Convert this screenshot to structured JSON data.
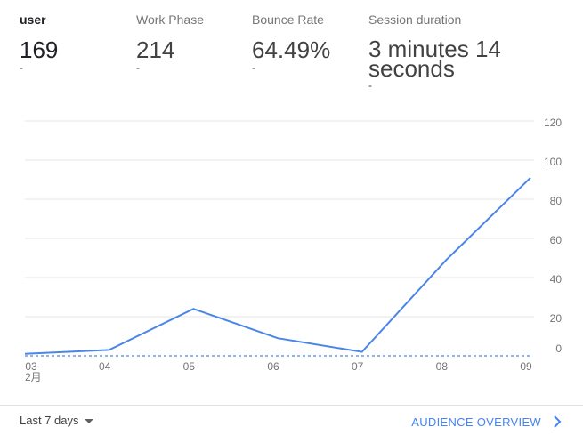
{
  "metrics": [
    {
      "label": "user",
      "value": "169",
      "change": "-"
    },
    {
      "label": "Work Phase",
      "value": "214",
      "change": "-"
    },
    {
      "label": "Bounce Rate",
      "value": "64.49%",
      "change": "-"
    },
    {
      "label": "Session duration",
      "value": "3 minutes 14 seconds",
      "change": "-"
    }
  ],
  "chart_data": {
    "type": "line",
    "categories": [
      "03",
      "04",
      "05",
      "06",
      "07",
      "08",
      "09"
    ],
    "month_label": "2月",
    "series": [
      {
        "values": [
          1,
          3,
          24,
          9,
          2,
          49,
          91
        ],
        "color": "#4a86e8"
      },
      {
        "values": [
          0,
          0,
          0,
          0,
          0,
          0,
          0
        ],
        "color": "#4a86e8",
        "style": "dashed"
      }
    ],
    "yticks": [
      0,
      20,
      40,
      60,
      80,
      100,
      120
    ],
    "ylim": [
      0,
      120
    ],
    "grid": true,
    "y_axis_side": "right"
  },
  "footer": {
    "date_range": "Last 7 days",
    "overview_link": "AUDIENCE OVERVIEW"
  },
  "colors": {
    "accent": "#4285f4",
    "line": "#4a86e8",
    "grid": "#e6e6e6"
  },
  "icons": {
    "caret": "caret-down-icon",
    "chevron": "chevron-right-icon"
  }
}
